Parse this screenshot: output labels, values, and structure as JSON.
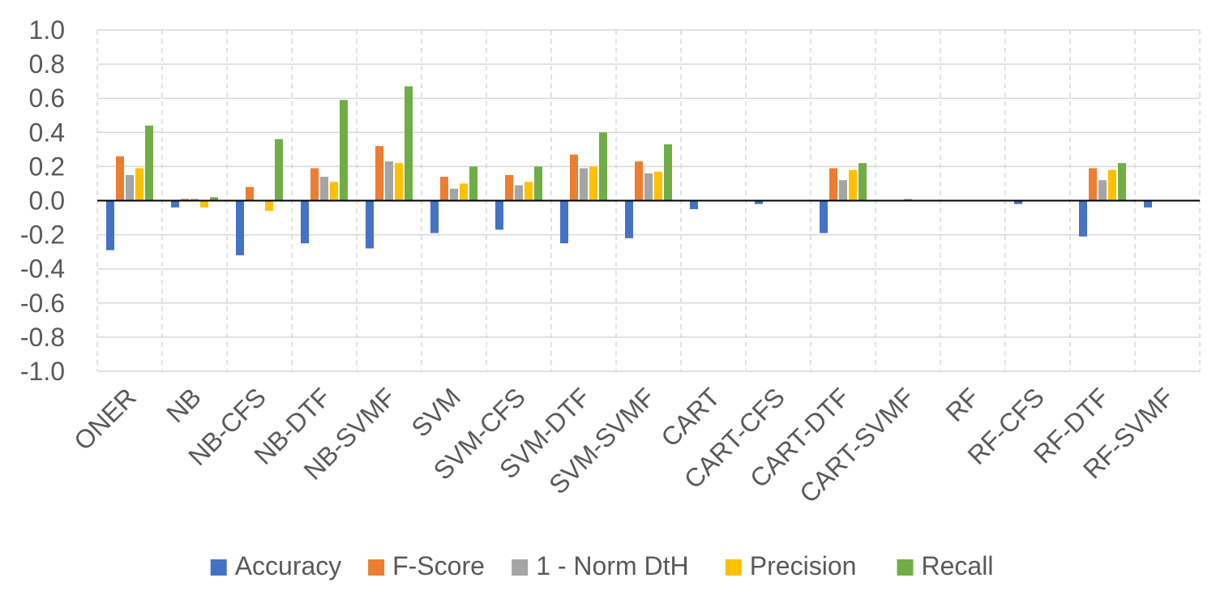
{
  "chart_data": {
    "type": "bar",
    "title": "",
    "xlabel": "",
    "ylabel": "",
    "ylim": [
      -1.0,
      1.0
    ],
    "yticks": [
      "1.0",
      "0.8",
      "0.6",
      "0.4",
      "0.2",
      "0.0",
      "-0.2",
      "-0.4",
      "-0.6",
      "-0.8",
      "-1.0"
    ],
    "grid": "on (dashed vertical, solid horizontal)",
    "legend_position": "bottom",
    "categories": [
      "ONER",
      "NB",
      "NB-CFS",
      "NB-DTF",
      "NB-SVMF",
      "SVM",
      "SVM-CFS",
      "SVM-DTF",
      "SVM-SVMF",
      "CART",
      "CART-CFS",
      "CART-DTF",
      "CART-SVMF",
      "RF",
      "RF-CFS",
      "RF-DTF",
      "RF-SVMF"
    ],
    "series": [
      {
        "name": "Accuracy",
        "color": "#4472C4",
        "values": [
          -0.29,
          -0.04,
          -0.32,
          -0.25,
          -0.28,
          -0.19,
          -0.17,
          -0.25,
          -0.22,
          -0.05,
          -0.02,
          -0.19,
          0.0,
          0.0,
          -0.02,
          -0.21,
          -0.04
        ]
      },
      {
        "name": "F-Score",
        "color": "#ED7D31",
        "values": [
          0.26,
          0.01,
          0.08,
          0.19,
          0.32,
          0.14,
          0.15,
          0.27,
          0.23,
          0.0,
          0.0,
          0.19,
          0.0,
          0.0,
          0.0,
          0.19,
          0.0
        ]
      },
      {
        "name": "1 - Norm DtH",
        "color": "#A5A5A5",
        "values": [
          0.15,
          0.01,
          0.0,
          0.14,
          0.23,
          0.07,
          0.09,
          0.19,
          0.16,
          0.0,
          0.0,
          0.12,
          0.01,
          0.0,
          0.0,
          0.12,
          0.0
        ]
      },
      {
        "name": "Precision",
        "color": "#FFC000",
        "values": [
          0.19,
          -0.04,
          -0.06,
          0.11,
          0.22,
          0.1,
          0.11,
          0.2,
          0.17,
          0.0,
          0.0,
          0.18,
          0.0,
          0.0,
          0.0,
          0.18,
          0.0
        ]
      },
      {
        "name": "Recall",
        "color": "#70AD47",
        "values": [
          0.44,
          0.02,
          0.36,
          0.59,
          0.67,
          0.2,
          0.2,
          0.4,
          0.33,
          0.0,
          0.0,
          0.22,
          0.0,
          0.0,
          0.0,
          0.22,
          0.0
        ]
      }
    ]
  }
}
